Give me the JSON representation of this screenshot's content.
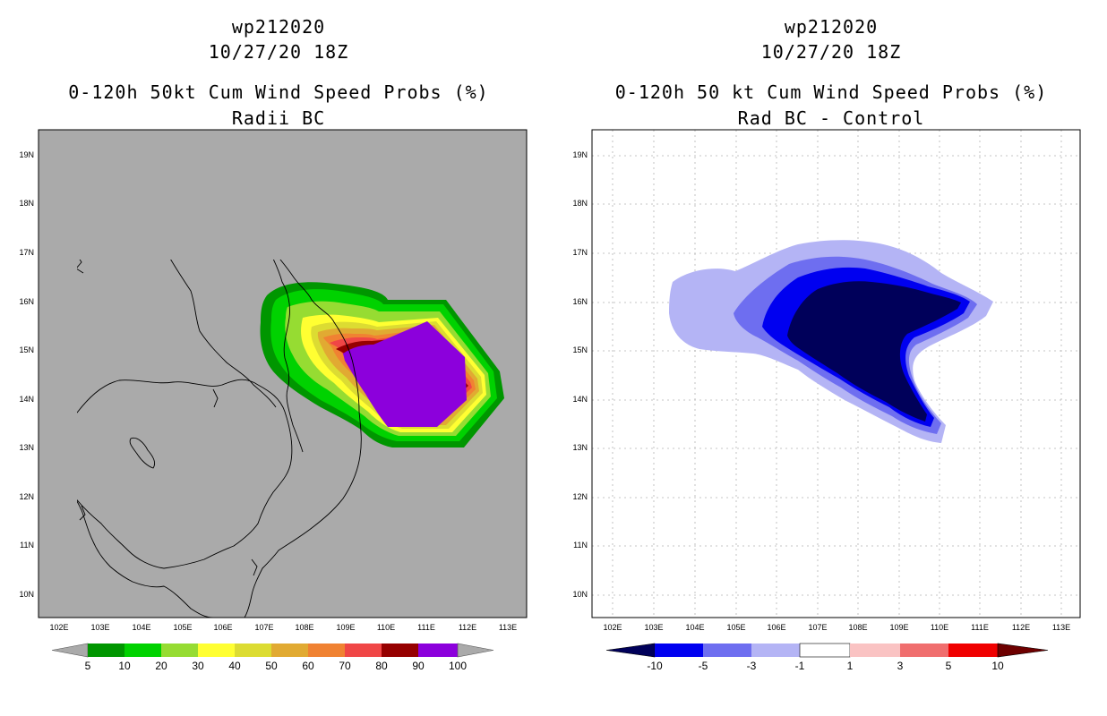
{
  "left_panel": {
    "title_lines": [
      "wp212020",
      "10/27/20 18Z",
      "0-120h 50kt Cum Wind Speed Probs (%)",
      "Radii BC"
    ],
    "lat_labels": [
      "19N",
      "18N",
      "17N",
      "16N",
      "15N",
      "14N",
      "13N",
      "12N",
      "11N",
      "10N"
    ],
    "lon_labels": [
      "102E",
      "103E",
      "104E",
      "105E",
      "106E",
      "107E",
      "108E",
      "109E",
      "110E",
      "111E",
      "112E",
      "113E"
    ],
    "colorbar": {
      "labels": [
        "5",
        "10",
        "20",
        "30",
        "40",
        "50",
        "60",
        "70",
        "80",
        "90",
        "100"
      ],
      "colors": [
        "#009600",
        "#00d200",
        "#96dc32",
        "#ffff32",
        "#dcdc32",
        "#e1aa32",
        "#f08232",
        "#f04646",
        "#960000",
        "#8c00dc"
      ],
      "end_color": "#aaaaaa"
    },
    "background": "#aaaaaa"
  },
  "right_panel": {
    "title_lines": [
      "wp212020",
      "10/27/20 18Z",
      "0-120h 50 kt Cum Wind Speed Probs (%)",
      "Rad BC - Control"
    ],
    "lat_labels": [
      "19N",
      "18N",
      "17N",
      "16N",
      "15N",
      "14N",
      "13N",
      "12N",
      "11N",
      "10N"
    ],
    "lon_labels": [
      "102E",
      "103E",
      "104E",
      "105E",
      "106E",
      "107E",
      "108E",
      "109E",
      "110E",
      "111E",
      "112E",
      "113E"
    ],
    "colorbar": {
      "labels": [
        "-10",
        "-5",
        "-3",
        "-1",
        "1",
        "3",
        "5",
        "10"
      ],
      "colors": [
        "#0000f0",
        "#6e6ef0",
        "#b4b4f5",
        "#ffffff",
        "#fac3c3",
        "#f06e6e",
        "#f00000"
      ],
      "low_end_color": "#00005a",
      "high_end_color": "#6e0000"
    },
    "background": "#ffffff"
  }
}
